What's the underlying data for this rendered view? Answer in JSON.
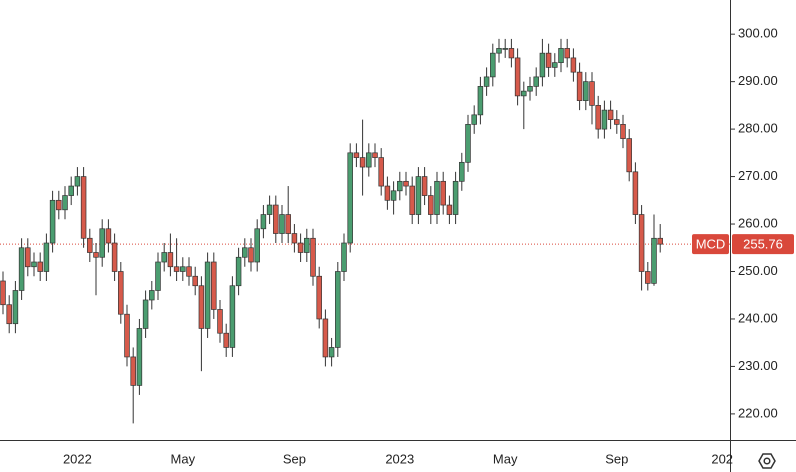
{
  "chart_data": {
    "type": "candlestick",
    "categories": [
      null,
      null,
      null,
      null,
      null,
      null,
      null,
      null,
      null,
      null,
      null,
      null,
      "2022",
      null,
      null,
      null,
      null,
      null,
      null,
      null,
      null,
      null,
      null,
      null,
      null,
      null,
      null,
      null,
      null,
      "May",
      null,
      null,
      null,
      null,
      null,
      null,
      null,
      null,
      null,
      null,
      null,
      null,
      null,
      null,
      null,
      null,
      null,
      "Sep",
      null,
      null,
      null,
      null,
      null,
      null,
      null,
      null,
      null,
      null,
      null,
      null,
      null,
      null,
      null,
      null,
      "2023",
      null,
      null,
      null,
      null,
      null,
      null,
      null,
      null,
      null,
      null,
      null,
      null,
      null,
      null,
      null,
      null,
      "May",
      null,
      null,
      null,
      null,
      null,
      null,
      null,
      null,
      null,
      null,
      null,
      null,
      null,
      null,
      null,
      null,
      null,
      "Sep",
      null,
      null,
      null,
      null,
      null,
      null,
      null,
      null,
      null,
      null,
      null,
      null,
      null,
      null,
      null,
      null,
      "202"
    ],
    "open": [
      248,
      243,
      239,
      246,
      255,
      251,
      252,
      250,
      256,
      265,
      263,
      266,
      268,
      270,
      257,
      254,
      253,
      259,
      256,
      250,
      241,
      232,
      226,
      238,
      244,
      246,
      252,
      254,
      251,
      250,
      251,
      249,
      247,
      238,
      252,
      242,
      237,
      234,
      247,
      253,
      255,
      252,
      259,
      262,
      264,
      258,
      262,
      258,
      256,
      254,
      257,
      249,
      240,
      232,
      234,
      250,
      256,
      275,
      274,
      272,
      275,
      274,
      268,
      265,
      267,
      269,
      268,
      262,
      270,
      266,
      262,
      269,
      264,
      262,
      269,
      273,
      281,
      283,
      289,
      291,
      296,
      297,
      297,
      295,
      287,
      288,
      289,
      291,
      296,
      293,
      294,
      297,
      295,
      292,
      286,
      290,
      285,
      280,
      284,
      282,
      281,
      278,
      271,
      262,
      250,
      247.5,
      257,
      null,
      null,
      null,
      null,
      null,
      null,
      null,
      null,
      null,
      null
    ],
    "high": [
      250,
      245,
      248,
      257,
      257,
      254,
      254,
      258,
      267,
      267,
      268,
      270,
      272,
      272,
      259,
      256,
      261,
      261,
      258,
      252,
      243,
      234,
      240,
      246,
      248,
      254,
      256,
      258,
      257,
      253,
      253,
      251,
      249,
      254,
      254,
      244,
      239,
      249,
      255,
      257,
      257,
      261,
      264,
      266,
      266,
      264,
      268,
      260,
      258,
      259,
      259,
      251,
      242,
      236,
      252,
      258,
      277,
      277,
      282,
      277,
      277,
      276,
      270,
      269,
      271,
      271,
      270,
      272,
      272,
      268,
      271,
      271,
      266,
      271,
      275,
      283,
      285,
      291,
      293,
      298,
      299,
      299,
      299,
      297,
      290,
      291,
      293,
      299,
      298,
      296,
      299,
      299,
      297,
      294,
      292,
      292,
      287,
      286,
      286,
      284,
      283,
      280,
      273,
      264,
      252,
      262,
      260,
      null,
      null,
      null,
      null,
      null,
      null,
      null,
      null,
      null,
      null
    ],
    "low": [
      241,
      237,
      237,
      244,
      249,
      249,
      248,
      248,
      254,
      261,
      261,
      264,
      266,
      255,
      252,
      245,
      251,
      254,
      248,
      239,
      230,
      218,
      224,
      236,
      242,
      244,
      250,
      249,
      248,
      248,
      247,
      245,
      229,
      236,
      240,
      235,
      232,
      232,
      245,
      251,
      250,
      250,
      257,
      260,
      256,
      256,
      256,
      254,
      252,
      252,
      247,
      238,
      230,
      230,
      232,
      248,
      254,
      272,
      266,
      270,
      272,
      266,
      263,
      262,
      265,
      266,
      260,
      260,
      264,
      260,
      260,
      262,
      260,
      260,
      267,
      271,
      279,
      281,
      287,
      289,
      294,
      295,
      293,
      285,
      280,
      286,
      287,
      289,
      291,
      291,
      292,
      293,
      290,
      284,
      284,
      281,
      278,
      278,
      280,
      279,
      276,
      269,
      260,
      246,
      246,
      247,
      254,
      null,
      null,
      null,
      null,
      null,
      null,
      null,
      null,
      null,
      null
    ],
    "close": [
      243,
      239,
      246,
      255,
      251,
      252,
      250,
      256,
      265,
      263,
      266,
      268,
      270,
      257,
      254,
      253,
      259,
      256,
      250,
      241,
      232,
      226,
      238,
      244,
      246,
      252,
      254,
      251,
      250,
      251,
      249,
      247,
      238,
      252,
      242,
      237,
      234,
      247,
      253,
      255,
      252,
      259,
      262,
      264,
      258,
      262,
      258,
      256,
      254,
      257,
      249,
      240,
      232,
      234,
      250,
      256,
      275,
      274,
      272,
      275,
      274,
      268,
      265,
      267,
      269,
      268,
      262,
      270,
      266,
      262,
      269,
      264,
      262,
      269,
      273,
      281,
      283,
      289,
      291,
      296,
      297,
      297,
      295,
      287,
      288,
      289,
      291,
      296,
      293,
      294,
      297,
      295,
      292,
      286,
      290,
      285,
      280,
      284,
      282,
      281,
      278,
      271,
      262,
      250,
      247.5,
      257,
      255.76,
      null,
      null,
      null,
      null,
      null,
      null,
      null,
      null,
      null,
      null
    ],
    "up_color": "#4b9d70",
    "down_color": "#d65a4b",
    "ylim": [
      214.5,
      307.2
    ],
    "yticks": [
      {
        "value": 220,
        "label": "220.00"
      },
      {
        "value": 230,
        "label": "230.00"
      },
      {
        "value": 240,
        "label": "240.00"
      },
      {
        "value": 250,
        "label": "250.00"
      },
      {
        "value": 260,
        "label": "260.00"
      },
      {
        "value": 270,
        "label": "270.00"
      },
      {
        "value": 280,
        "label": "280.00"
      },
      {
        "value": 290,
        "label": "290.00"
      },
      {
        "value": 300,
        "label": "300.00"
      }
    ],
    "price_line": {
      "name": "MCD",
      "value": 255.76,
      "label": "255.76",
      "color": "#d9483b"
    }
  }
}
